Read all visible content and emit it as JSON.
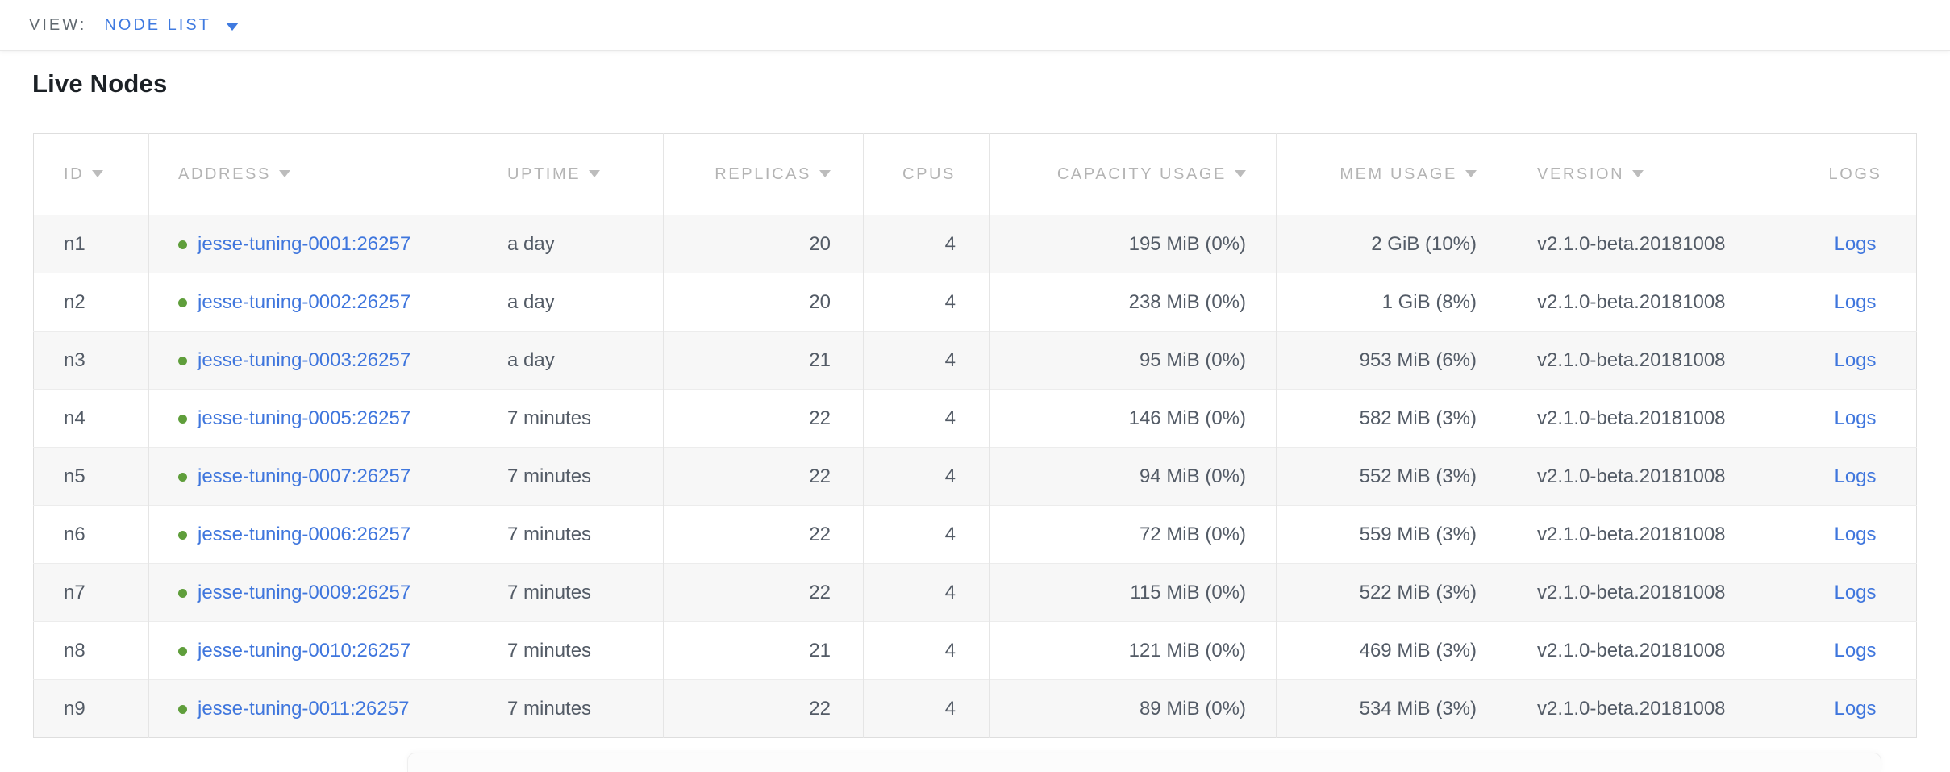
{
  "view_bar": {
    "label": "VIEW:",
    "selected_view": "NODE LIST"
  },
  "page": {
    "title": "Live Nodes"
  },
  "table": {
    "columns": [
      {
        "key": "id",
        "label": "ID",
        "sortable": true
      },
      {
        "key": "address",
        "label": "ADDRESS",
        "sortable": true
      },
      {
        "key": "uptime",
        "label": "UPTIME",
        "sortable": true
      },
      {
        "key": "replicas",
        "label": "REPLICAS",
        "sortable": true
      },
      {
        "key": "cpus",
        "label": "CPUS",
        "sortable": false
      },
      {
        "key": "capacity",
        "label": "CAPACITY USAGE",
        "sortable": true
      },
      {
        "key": "mem",
        "label": "MEM USAGE",
        "sortable": true
      },
      {
        "key": "version",
        "label": "VERSION",
        "sortable": true
      },
      {
        "key": "logs",
        "label": "LOGS",
        "sortable": false
      }
    ],
    "rows": [
      {
        "id": "n1",
        "status": "live",
        "address": "jesse-tuning-0001:26257",
        "uptime": "a day",
        "replicas": "20",
        "cpus": "4",
        "capacity": "195 MiB (0%)",
        "mem": "2 GiB (10%)",
        "version": "v2.1.0-beta.20181008",
        "logs": "Logs"
      },
      {
        "id": "n2",
        "status": "live",
        "address": "jesse-tuning-0002:26257",
        "uptime": "a day",
        "replicas": "20",
        "cpus": "4",
        "capacity": "238 MiB (0%)",
        "mem": "1 GiB (8%)",
        "version": "v2.1.0-beta.20181008",
        "logs": "Logs"
      },
      {
        "id": "n3",
        "status": "live",
        "address": "jesse-tuning-0003:26257",
        "uptime": "a day",
        "replicas": "21",
        "cpus": "4",
        "capacity": "95 MiB (0%)",
        "mem": "953 MiB (6%)",
        "version": "v2.1.0-beta.20181008",
        "logs": "Logs"
      },
      {
        "id": "n4",
        "status": "live",
        "address": "jesse-tuning-0005:26257",
        "uptime": "7 minutes",
        "replicas": "22",
        "cpus": "4",
        "capacity": "146 MiB (0%)",
        "mem": "582 MiB (3%)",
        "version": "v2.1.0-beta.20181008",
        "logs": "Logs"
      },
      {
        "id": "n5",
        "status": "live",
        "address": "jesse-tuning-0007:26257",
        "uptime": "7 minutes",
        "replicas": "22",
        "cpus": "4",
        "capacity": "94 MiB (0%)",
        "mem": "552 MiB (3%)",
        "version": "v2.1.0-beta.20181008",
        "logs": "Logs"
      },
      {
        "id": "n6",
        "status": "live",
        "address": "jesse-tuning-0006:26257",
        "uptime": "7 minutes",
        "replicas": "22",
        "cpus": "4",
        "capacity": "72 MiB (0%)",
        "mem": "559 MiB (3%)",
        "version": "v2.1.0-beta.20181008",
        "logs": "Logs"
      },
      {
        "id": "n7",
        "status": "live",
        "address": "jesse-tuning-0009:26257",
        "uptime": "7 minutes",
        "replicas": "22",
        "cpus": "4",
        "capacity": "115 MiB (0%)",
        "mem": "522 MiB (3%)",
        "version": "v2.1.0-beta.20181008",
        "logs": "Logs"
      },
      {
        "id": "n8",
        "status": "live",
        "address": "jesse-tuning-0010:26257",
        "uptime": "7 minutes",
        "replicas": "21",
        "cpus": "4",
        "capacity": "121 MiB (0%)",
        "mem": "469 MiB (3%)",
        "version": "v2.1.0-beta.20181008",
        "logs": "Logs"
      },
      {
        "id": "n9",
        "status": "live",
        "address": "jesse-tuning-0011:26257",
        "uptime": "7 minutes",
        "replicas": "22",
        "cpus": "4",
        "capacity": "89 MiB (0%)",
        "mem": "534 MiB (3%)",
        "version": "v2.1.0-beta.20181008",
        "logs": "Logs"
      }
    ]
  },
  "colors": {
    "link_blue": "#3f76dd",
    "nav_blue": "#3f7ae0",
    "live_dot_green": "#5f9e3b",
    "header_gray": "#b4b4b4",
    "cell_text": "#535b66",
    "stripe_row_bg": "#f7f7f7"
  }
}
